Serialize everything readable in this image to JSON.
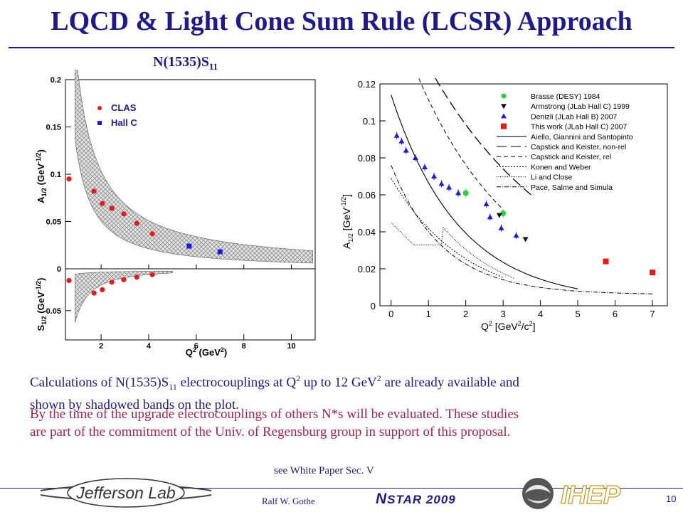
{
  "slide": {
    "title": "LQCD & Light Cone Sum Rule (LCSR) Approach",
    "subtitle_main": "N(1535)S",
    "subtitle_sub": "11",
    "para1": {
      "t1": "Calculations of N(1535)S",
      "t1_sub": "11",
      "t2": " electrocouplings at Q",
      "t2_sup": "2",
      "t3": " up to 12 GeV",
      "t3_sup": "2",
      "t4": " are already available and",
      "line2": "shown by shadowed bands on the plot."
    },
    "para2": {
      "line1": "By the time of the upgrade electrocouplings of others N*s will be evaluated. These studies",
      "line2": "are part of the commitment of the Univ. of Regensburg group in support of this proposal."
    },
    "see_white_paper": "see White Paper Sec. V",
    "footer": {
      "author": "Ralf  W. Gothe",
      "conf_prefix": "N",
      "conf_rest": "STAR 2009",
      "page": "10",
      "logo_left": "Jefferson Lab",
      "logo_right": "IHEP"
    },
    "colors": {
      "title": "#1f1a8c",
      "para2": "#a8224a",
      "clas": "#e41a1c",
      "hallc": "#1a1ae4"
    }
  },
  "chart_data": [
    {
      "type": "scatter",
      "legend": [
        "CLAS",
        "Hall C"
      ],
      "top_panel": {
        "ylabel": "A1/2 (GeV^-1/2)",
        "ylim": [
          0,
          0.2
        ],
        "yticks": [
          "0",
          "0.05",
          "0.1",
          "0.15",
          "0.2"
        ],
        "series": [
          {
            "name": "CLAS",
            "x": [
              0.65,
              1.7,
              2.05,
              2.45,
              2.95,
              3.5,
              4.15
            ],
            "y": [
              0.095,
              0.082,
              0.069,
              0.064,
              0.058,
              0.048,
              0.037
            ]
          },
          {
            "name": "Hall C",
            "x": [
              5.7,
              7.0
            ],
            "y": [
              0.024,
              0.018
            ]
          }
        ]
      },
      "bottom_panel": {
        "ylabel": "S1/2 (GeV^-1/2)",
        "ylim": [
          -0.085,
          0
        ],
        "yticks": [
          "0",
          "-0.05"
        ],
        "series": [
          {
            "name": "CLAS",
            "x": [
              0.65,
              1.7,
              2.05,
              2.45,
              2.95,
              3.5,
              4.15
            ],
            "y": [
              -0.014,
              -0.029,
              -0.025,
              -0.016,
              -0.013,
              -0.01,
              -0.007
            ]
          }
        ]
      },
      "xlabel": "Q2 (GeV2)",
      "xlim": [
        0.5,
        11
      ],
      "xticks": [
        "2",
        "4",
        "6",
        "8",
        "10"
      ]
    },
    {
      "type": "scatter",
      "xlabel": "Q2 [GeV2/c2]",
      "ylabel": "A1/2 [GeV-1/2]",
      "xlim": [
        -0.3,
        7.4
      ],
      "ylim": [
        0,
        0.12
      ],
      "xticks": [
        "0",
        "1",
        "2",
        "3",
        "4",
        "5",
        "6",
        "7"
      ],
      "yticks": [
        "0",
        "0.02",
        "0.04",
        "0.06",
        "0.08",
        "0.1",
        "0.12"
      ],
      "legend": [
        "Brasse (DESY) 1984",
        "Armstrong (JLab Hall C) 1999",
        "Denizli (JLab Hall B) 2007",
        "This work (JLab Hall C) 2007",
        "Aiello, Giannini and Santopinto",
        "Capstick and Keister, non-rel",
        "Capstick and Keister, rel",
        "Konen and Weber",
        "Li and Close",
        "Pace, Salme and Simula"
      ],
      "series": [
        {
          "name": "Brasse (DESY) 1984",
          "x": [
            2.0,
            3.0
          ],
          "y": [
            0.061,
            0.05
          ]
        },
        {
          "name": "Armstrong (JLab Hall C) 1999",
          "x": [
            2.9,
            3.6
          ],
          "y": [
            0.049,
            0.036
          ]
        },
        {
          "name": "Denizli (JLab Hall B) 2007",
          "x": [
            0.15,
            0.28,
            0.4,
            0.65,
            0.9,
            1.15,
            1.35,
            1.55,
            1.8,
            2.55,
            2.65,
            2.95,
            3.35
          ],
          "y": [
            0.092,
            0.089,
            0.084,
            0.08,
            0.075,
            0.07,
            0.066,
            0.064,
            0.061,
            0.055,
            0.048,
            0.042,
            0.038
          ]
        },
        {
          "name": "This work (JLab Hall C) 2007",
          "x": [
            5.75,
            7.0
          ],
          "y": [
            0.024,
            0.018
          ]
        }
      ]
    }
  ]
}
